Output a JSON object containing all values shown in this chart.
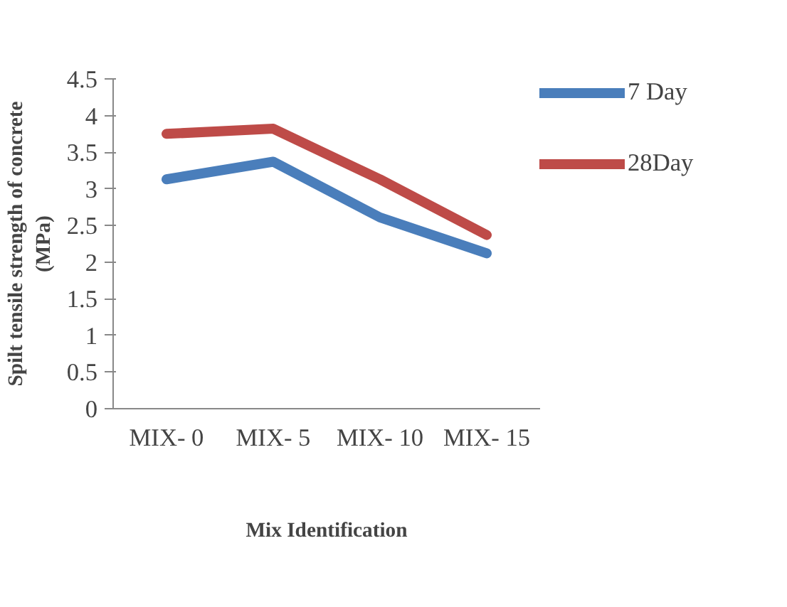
{
  "chart_data": {
    "type": "line",
    "xlabel": "Mix Identification",
    "ylabel": "Spilt tensile strength of concrete\n(MPa)",
    "categories": [
      "MIX- 0",
      "MIX- 5",
      "MIX- 10",
      "MIX- 15"
    ],
    "series": [
      {
        "name": "7 Day",
        "color": "#4a7ebb",
        "values": [
          3.13,
          3.37,
          2.61,
          2.12
        ]
      },
      {
        "name": "28Day",
        "color": "#be4b48",
        "values": [
          3.75,
          3.82,
          3.13,
          2.37
        ]
      }
    ],
    "ylim": [
      0,
      4.5
    ],
    "yticks": [
      0,
      0.5,
      1,
      1.5,
      2,
      2.5,
      3,
      3.5,
      4,
      4.5
    ],
    "grid": false,
    "legend": "top right",
    "line_style": "solid",
    "marker": "none"
  }
}
